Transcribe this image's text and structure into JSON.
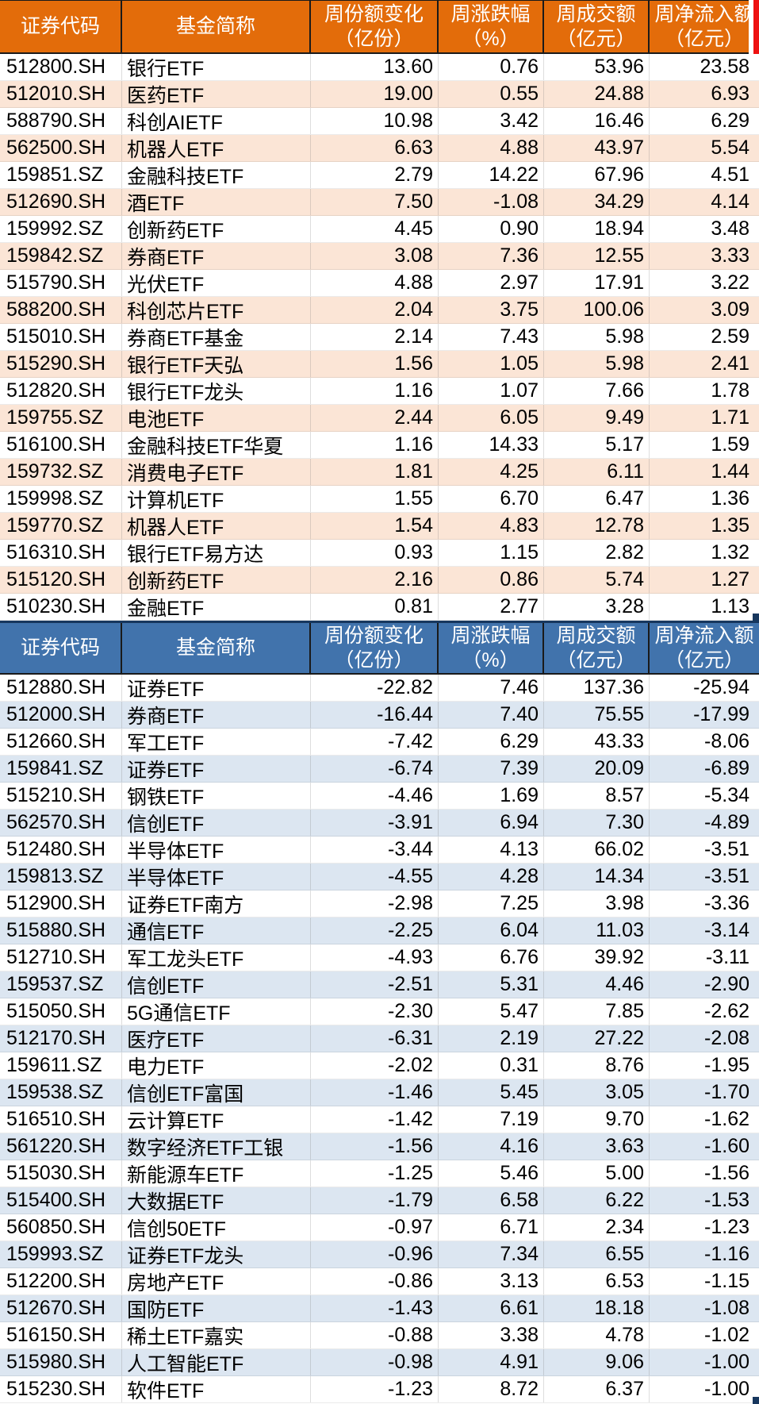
{
  "colors": {
    "orange_header": "#E36C0A",
    "orange_row": "#FBE5D6",
    "blue_header": "#4173AC",
    "blue_row": "#DCE6F1",
    "header_text": "#FFFFFF",
    "text": "#000000",
    "navy": "#17375E",
    "red": "#EE1111"
  },
  "tables": [
    {
      "name": "weekly-net-inflow-table",
      "theme": "orange",
      "columns": [
        {
          "l1": "证券代码",
          "l2": ""
        },
        {
          "l1": "基金简称",
          "l2": ""
        },
        {
          "l1": "周份额变化",
          "l2": "（亿份）"
        },
        {
          "l1": "周涨跌幅",
          "l2": "（%）"
        },
        {
          "l1": "周成交额",
          "l2": "（亿元）"
        },
        {
          "l1": "周净流入额",
          "l2": "（亿元）"
        }
      ],
      "rows": [
        [
          "512800.SH",
          "银行ETF",
          "13.60",
          "0.76",
          "53.96",
          "23.58"
        ],
        [
          "512010.SH",
          "医药ETF",
          "19.00",
          "0.55",
          "24.88",
          "6.93"
        ],
        [
          "588790.SH",
          "科创AIETF",
          "10.98",
          "3.42",
          "16.46",
          "6.29"
        ],
        [
          "562500.SH",
          "机器人ETF",
          "6.63",
          "4.88",
          "43.97",
          "5.54"
        ],
        [
          "159851.SZ",
          "金融科技ETF",
          "2.79",
          "14.22",
          "67.96",
          "4.51"
        ],
        [
          "512690.SH",
          "酒ETF",
          "7.50",
          "-1.08",
          "34.29",
          "4.14"
        ],
        [
          "159992.SZ",
          "创新药ETF",
          "4.45",
          "0.90",
          "18.94",
          "3.48"
        ],
        [
          "159842.SZ",
          "券商ETF",
          "3.08",
          "7.36",
          "12.55",
          "3.33"
        ],
        [
          "515790.SH",
          "光伏ETF",
          "4.88",
          "2.97",
          "17.91",
          "3.22"
        ],
        [
          "588200.SH",
          "科创芯片ETF",
          "2.04",
          "3.75",
          "100.06",
          "3.09"
        ],
        [
          "515010.SH",
          "券商ETF基金",
          "2.14",
          "7.43",
          "5.98",
          "2.59"
        ],
        [
          "515290.SH",
          "银行ETF天弘",
          "1.56",
          "1.05",
          "5.98",
          "2.41"
        ],
        [
          "512820.SH",
          "银行ETF龙头",
          "1.16",
          "1.07",
          "7.66",
          "1.78"
        ],
        [
          "159755.SZ",
          "电池ETF",
          "2.44",
          "6.05",
          "9.49",
          "1.71"
        ],
        [
          "516100.SH",
          "金融科技ETF华夏",
          "1.16",
          "14.33",
          "5.17",
          "1.59"
        ],
        [
          "159732.SZ",
          "消费电子ETF",
          "1.81",
          "4.25",
          "6.11",
          "1.44"
        ],
        [
          "159998.SZ",
          "计算机ETF",
          "1.55",
          "6.70",
          "6.47",
          "1.36"
        ],
        [
          "159770.SZ",
          "机器人ETF",
          "1.54",
          "4.83",
          "12.78",
          "1.35"
        ],
        [
          "516310.SH",
          "银行ETF易方达",
          "0.93",
          "1.15",
          "2.82",
          "1.32"
        ],
        [
          "515120.SH",
          "创新药ETF",
          "2.16",
          "0.86",
          "5.74",
          "1.27"
        ],
        [
          "510230.SH",
          "金融ETF",
          "0.81",
          "2.77",
          "3.28",
          "1.13"
        ]
      ]
    },
    {
      "name": "weekly-net-outflow-table",
      "theme": "blue",
      "columns": [
        {
          "l1": "证券代码",
          "l2": ""
        },
        {
          "l1": "基金简称",
          "l2": ""
        },
        {
          "l1": "周份额变化",
          "l2": "（亿份）"
        },
        {
          "l1": "周涨跌幅",
          "l2": "（%）"
        },
        {
          "l1": "周成交额",
          "l2": "（亿元）"
        },
        {
          "l1": "周净流入额",
          "l2": "（亿元）"
        }
      ],
      "rows": [
        [
          "512880.SH",
          "证券ETF",
          "-22.82",
          "7.46",
          "137.36",
          "-25.94"
        ],
        [
          "512000.SH",
          "券商ETF",
          "-16.44",
          "7.40",
          "75.55",
          "-17.99"
        ],
        [
          "512660.SH",
          "军工ETF",
          "-7.42",
          "6.29",
          "43.33",
          "-8.06"
        ],
        [
          "159841.SZ",
          "证券ETF",
          "-6.74",
          "7.39",
          "20.09",
          "-6.89"
        ],
        [
          "515210.SH",
          "钢铁ETF",
          "-4.46",
          "1.69",
          "8.57",
          "-5.34"
        ],
        [
          "562570.SH",
          "信创ETF",
          "-3.91",
          "6.94",
          "7.30",
          "-4.89"
        ],
        [
          "512480.SH",
          "半导体ETF",
          "-3.44",
          "4.13",
          "66.02",
          "-3.51"
        ],
        [
          "159813.SZ",
          "半导体ETF",
          "-4.55",
          "4.28",
          "14.34",
          "-3.51"
        ],
        [
          "512900.SH",
          "证券ETF南方",
          "-2.98",
          "7.25",
          "3.98",
          "-3.36"
        ],
        [
          "515880.SH",
          "通信ETF",
          "-2.25",
          "6.04",
          "11.03",
          "-3.14"
        ],
        [
          "512710.SH",
          "军工龙头ETF",
          "-4.93",
          "6.76",
          "39.92",
          "-3.11"
        ],
        [
          "159537.SZ",
          "信创ETF",
          "-2.51",
          "5.31",
          "4.46",
          "-2.90"
        ],
        [
          "515050.SH",
          "5G通信ETF",
          "-2.30",
          "5.47",
          "7.85",
          "-2.62"
        ],
        [
          "512170.SH",
          "医疗ETF",
          "-6.31",
          "2.19",
          "27.22",
          "-2.08"
        ],
        [
          "159611.SZ",
          "电力ETF",
          "-2.02",
          "0.31",
          "8.76",
          "-1.95"
        ],
        [
          "159538.SZ",
          "信创ETF富国",
          "-1.46",
          "5.45",
          "3.05",
          "-1.70"
        ],
        [
          "516510.SH",
          "云计算ETF",
          "-1.42",
          "7.19",
          "9.70",
          "-1.62"
        ],
        [
          "561220.SH",
          "数字经济ETF工银",
          "-1.56",
          "4.16",
          "3.63",
          "-1.60"
        ],
        [
          "515030.SH",
          "新能源车ETF",
          "-1.25",
          "5.46",
          "5.00",
          "-1.56"
        ],
        [
          "515400.SH",
          "大数据ETF",
          "-1.79",
          "6.58",
          "6.22",
          "-1.53"
        ],
        [
          "560850.SH",
          "信创50ETF",
          "-0.97",
          "6.71",
          "2.34",
          "-1.23"
        ],
        [
          "159993.SZ",
          "证券ETF龙头",
          "-0.96",
          "7.34",
          "6.55",
          "-1.16"
        ],
        [
          "512200.SH",
          "房地产ETF",
          "-0.86",
          "3.13",
          "6.53",
          "-1.15"
        ],
        [
          "512670.SH",
          "国防ETF",
          "-1.43",
          "6.61",
          "18.18",
          "-1.08"
        ],
        [
          "516150.SH",
          "稀土ETF嘉实",
          "-0.88",
          "3.38",
          "4.78",
          "-1.02"
        ],
        [
          "515980.SH",
          "人工智能ETF",
          "-0.98",
          "4.91",
          "9.06",
          "-1.00"
        ],
        [
          "515230.SH",
          "软件ETF",
          "-1.23",
          "8.72",
          "6.37",
          "-1.00"
        ]
      ]
    }
  ]
}
